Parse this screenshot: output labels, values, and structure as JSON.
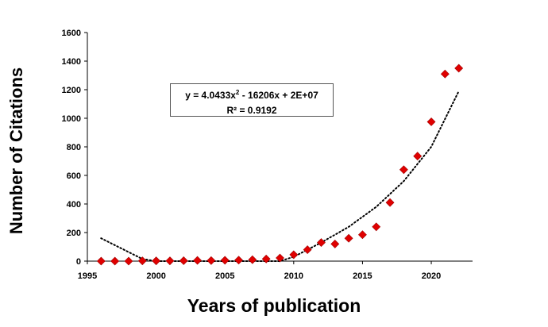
{
  "chart_data": {
    "type": "scatter",
    "xlabel": "Years of publication",
    "ylabel": "Number of Citations",
    "xlim": [
      1995,
      2023
    ],
    "ylim": [
      0,
      1600
    ],
    "x_ticks": [
      1995,
      2000,
      2005,
      2010,
      2015,
      2020
    ],
    "y_ticks": [
      0,
      200,
      400,
      600,
      800,
      1000,
      1200,
      1400,
      1600
    ],
    "grid": false,
    "marker_color": "#e00000",
    "marker_shape": "diamond",
    "trendline_style": "dotted",
    "series": [
      {
        "x": [
          1996,
          1997,
          1998,
          1999,
          2000,
          2001,
          2002,
          2003,
          2004,
          2005,
          2006,
          2007,
          2008,
          2009,
          2010,
          2011,
          2012,
          2013,
          2014,
          2015,
          2016,
          2017,
          2018,
          2019,
          2020,
          2021,
          2022
        ],
        "y": [
          0,
          0,
          0,
          2,
          2,
          2,
          3,
          5,
          4,
          6,
          7,
          10,
          15,
          22,
          45,
          80,
          130,
          120,
          160,
          185,
          240,
          410,
          640,
          735,
          975,
          1310,
          1350
        ]
      }
    ],
    "trendline": {
      "type": "polynomial",
      "order": 2,
      "equation_prefix": "y = 4.0433x",
      "equation_exp": "2",
      "equation_suffix": " - 16206x + 2E+07",
      "r_squared": "R² = 0.9192",
      "approx_points": [
        [
          1996,
          160
        ],
        [
          1999,
          15
        ],
        [
          2000,
          0
        ],
        [
          2009,
          0
        ],
        [
          2010,
          30
        ],
        [
          2012,
          130
        ],
        [
          2014,
          240
        ],
        [
          2016,
          380
        ],
        [
          2018,
          560
        ],
        [
          2020,
          800
        ],
        [
          2022,
          1190
        ]
      ]
    }
  }
}
